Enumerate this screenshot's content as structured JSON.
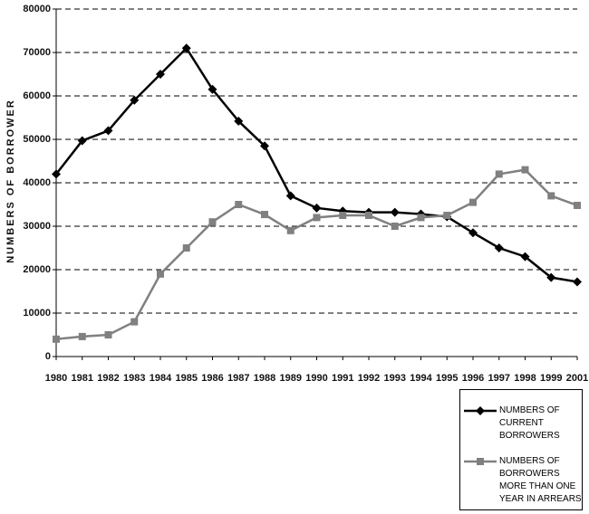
{
  "chart_data": {
    "type": "line",
    "y_label": "NUMBERS OF BORROWER",
    "categories": [
      "1980",
      "1981",
      "1982",
      "1983",
      "1984",
      "1985",
      "1986",
      "1987",
      "1988",
      "1989",
      "1990",
      "1991",
      "1992",
      "1993",
      "1994",
      "1995",
      "1996",
      "1997",
      "1998",
      "1999",
      "2001"
    ],
    "series": [
      {
        "name": "NUMBERS OF CURRENT BORROWERS",
        "color": "#000000",
        "marker": "diamond",
        "values": [
          42000,
          49700,
          52000,
          59000,
          65000,
          71000,
          61500,
          54200,
          48500,
          37000,
          34200,
          33500,
          33200,
          33200,
          32800,
          32200,
          28500,
          25000,
          23000,
          18200,
          17200
        ]
      },
      {
        "name": "NUMBERS OF BORROWERS MORE THAN ONE YEAR IN ARREARS",
        "color": "#808080",
        "marker": "square",
        "values": [
          4000,
          4600,
          5000,
          8000,
          19000,
          25000,
          31000,
          35000,
          32700,
          29000,
          32000,
          32500,
          32500,
          30000,
          32000,
          32500,
          35500,
          42000,
          43000,
          37000,
          34800
        ]
      }
    ],
    "ylim": [
      0,
      80000
    ],
    "yticks": [
      0,
      10000,
      20000,
      30000,
      40000,
      50000,
      60000,
      70000,
      80000
    ],
    "grid": true
  }
}
